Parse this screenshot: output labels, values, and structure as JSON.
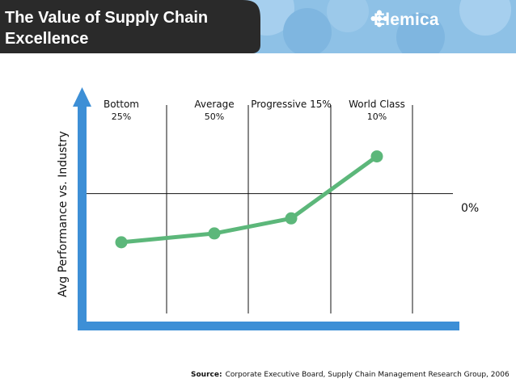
{
  "header": {
    "title": "The Value of Supply Chain Excellence",
    "logo_text": "Elemica",
    "bar_color": "#2a2a2a",
    "accent_color": "#8ec1e6"
  },
  "chart_data": {
    "type": "line",
    "ylabel": "Avg Performance vs. Industry",
    "reference_line_label": "0%",
    "columns": [
      {
        "label": "Bottom",
        "share": "25%"
      },
      {
        "label": "Average",
        "share": "50%"
      },
      {
        "label": "Progressive 15%",
        "share": ""
      },
      {
        "label": "World Class",
        "share": "10%"
      }
    ],
    "series": [
      {
        "values": [
          -0.55,
          -0.45,
          -0.28,
          0.42
        ]
      }
    ],
    "ylim": [
      -1.5,
      1.0
    ],
    "line_color": "#5cb77a",
    "axis_color": "#3d8fd6"
  },
  "source": {
    "label": "Source:",
    "text": "Corporate Executive Board, Supply Chain Management Research Group, 2006"
  }
}
